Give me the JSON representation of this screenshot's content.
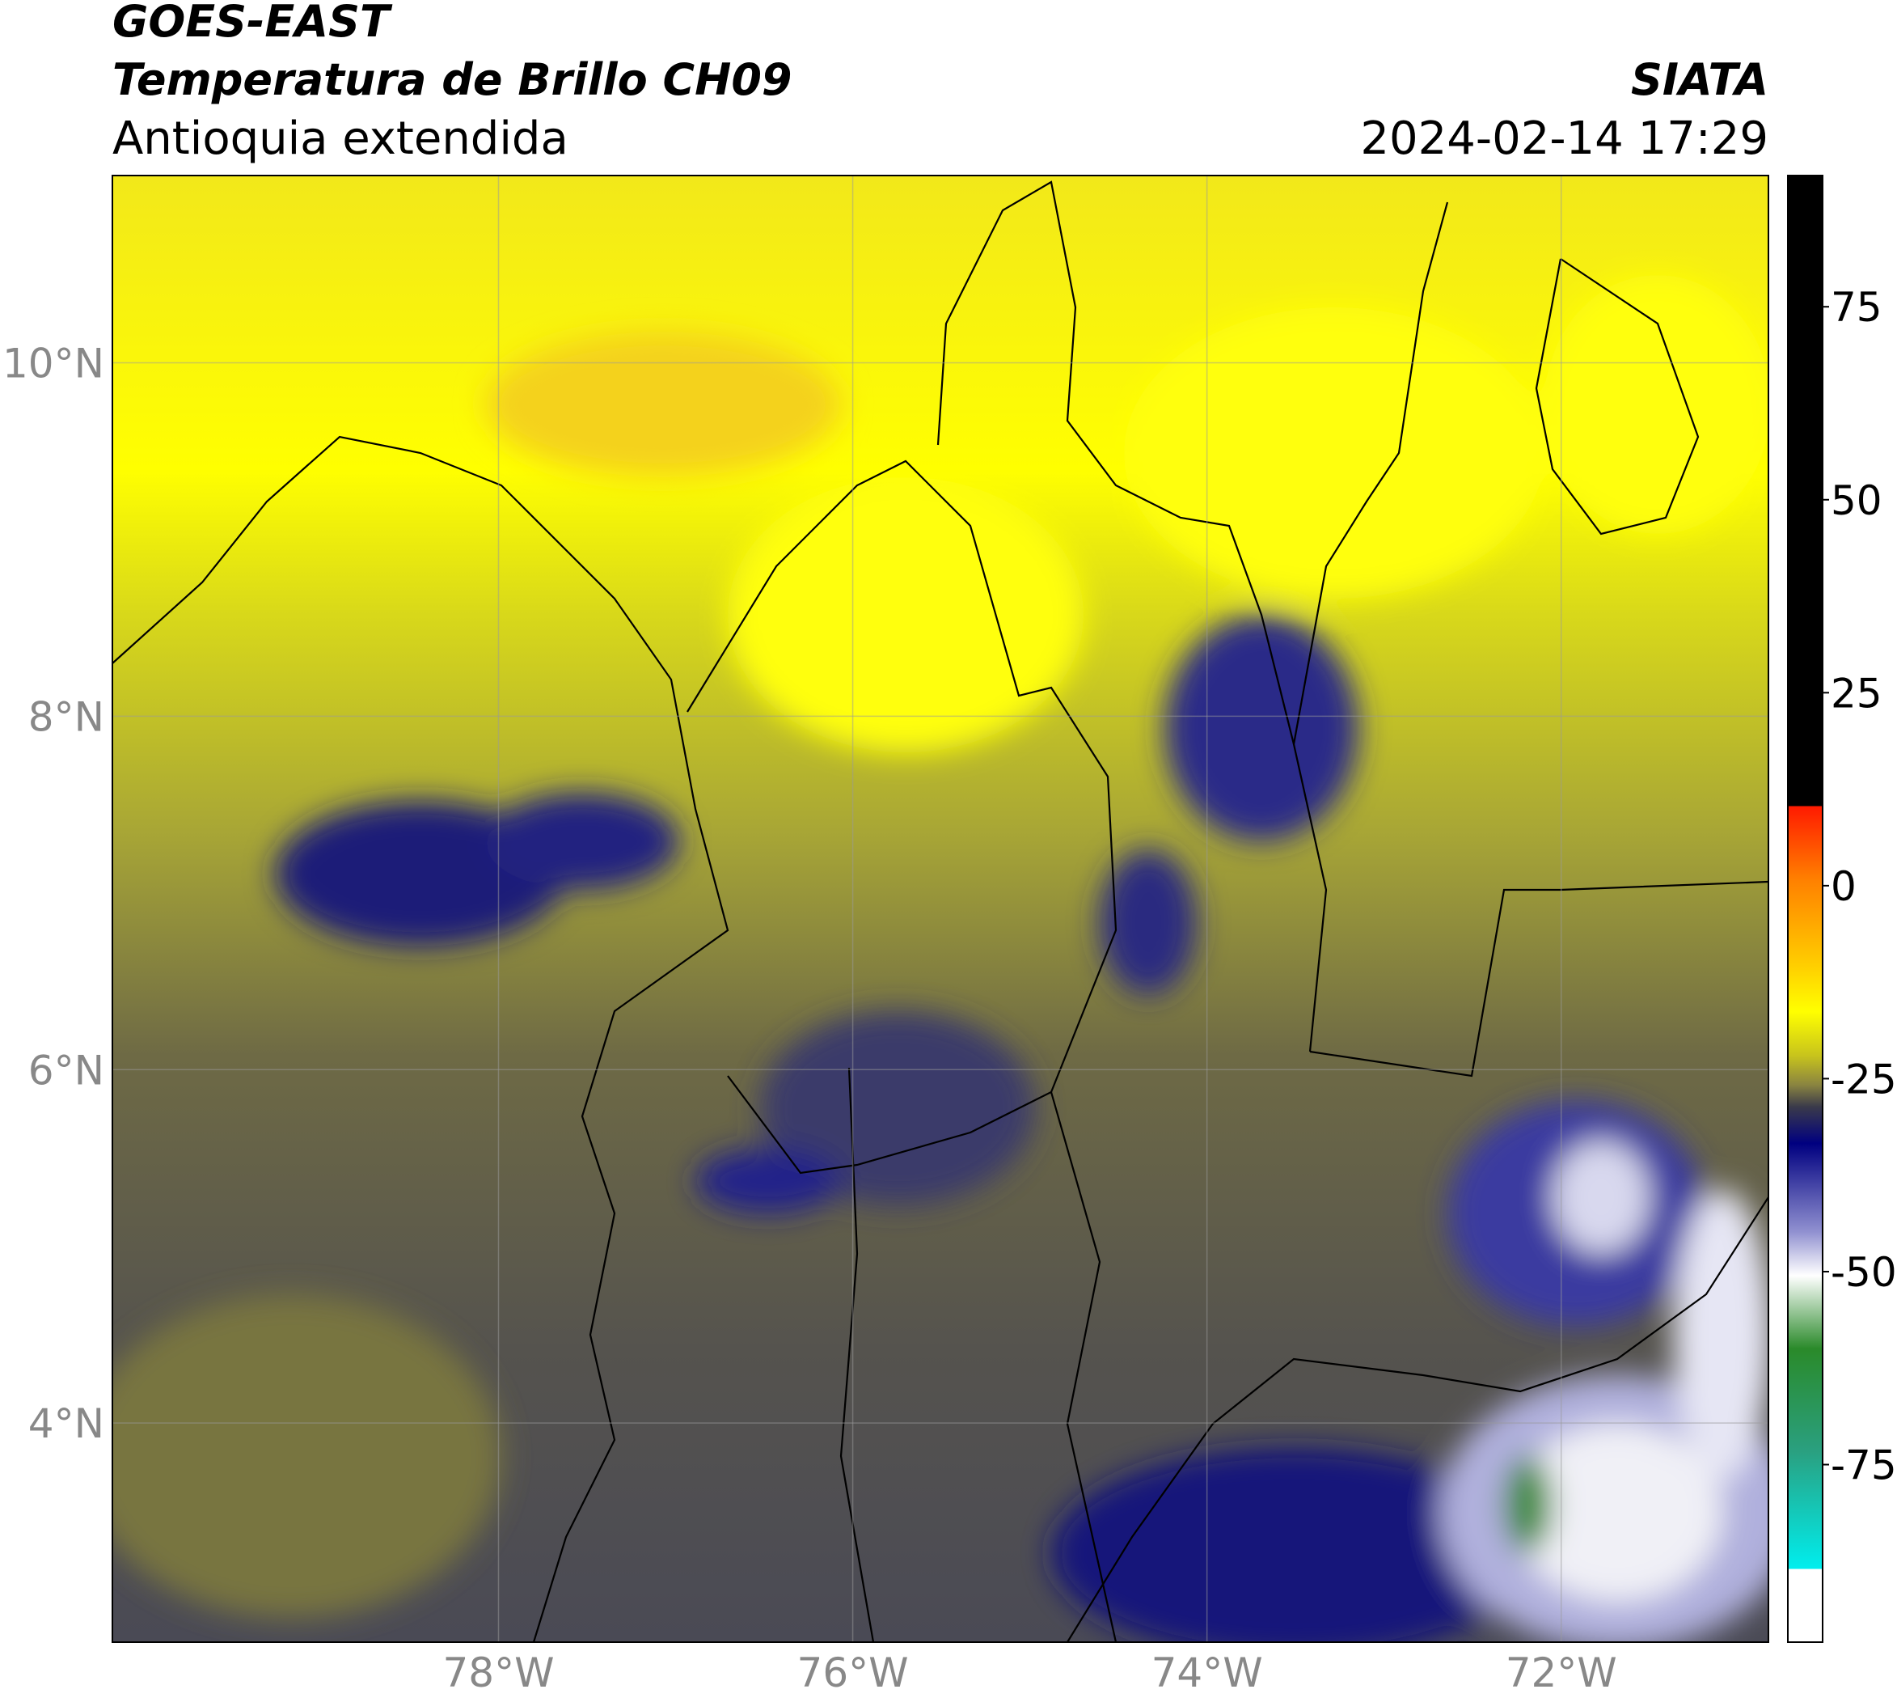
{
  "header": {
    "satellite": "GOES-EAST",
    "product": "Temperatura de Brillo CH09",
    "region": "Antioquia extendida",
    "source": "SIATA",
    "datetime": "2024-02-14 17:29"
  },
  "map": {
    "lat_lim": [
      2.76,
      11.06
    ],
    "lon_lim": [
      -80.18,
      -70.83
    ],
    "lat_ticks": [
      {
        "value": 10,
        "label": "10°N"
      },
      {
        "value": 8,
        "label": "8°N"
      },
      {
        "value": 6,
        "label": "6°N"
      },
      {
        "value": 4,
        "label": "4°N"
      }
    ],
    "lon_ticks": [
      {
        "value": -78,
        "label": "78°W"
      },
      {
        "value": -76,
        "label": "76°W"
      },
      {
        "value": -74,
        "label": "74°W"
      },
      {
        "value": -72,
        "label": "72°W"
      }
    ],
    "grid": true
  },
  "colorbar": {
    "lim": [
      -98,
      92
    ],
    "ticks": [
      75,
      50,
      25,
      0,
      -25,
      -50,
      -75
    ]
  }
}
